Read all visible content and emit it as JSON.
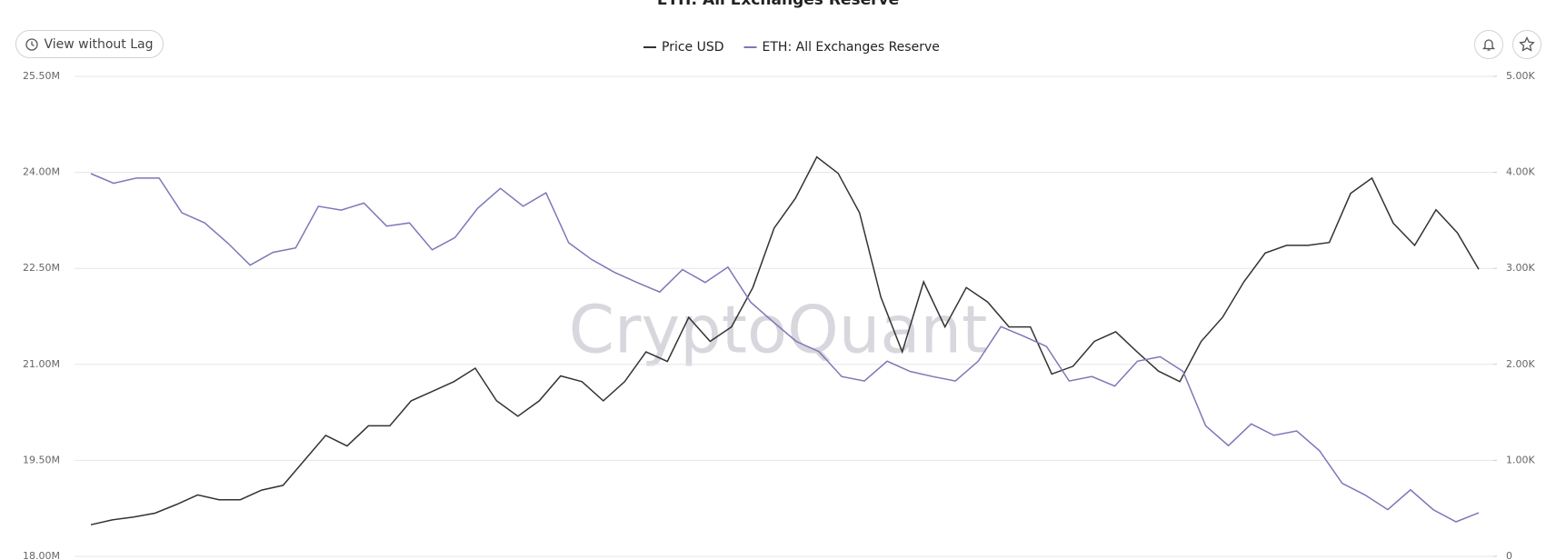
{
  "toolbar": {
    "button_label": "View without Lag"
  },
  "chart_data": {
    "type": "line",
    "title": "ETH: All Exchanges Reserve",
    "watermark": "CryptoQuant",
    "ylim": [
      18000000,
      25500000
    ],
    "yticks": [
      {
        "value": 18000000,
        "label": "18.00M"
      },
      {
        "value": 19500000,
        "label": "19.50M"
      },
      {
        "value": 21000000,
        "label": "21.00M"
      },
      {
        "value": 22500000,
        "label": "22.50M"
      },
      {
        "value": 24000000,
        "label": "24.00M"
      },
      {
        "value": 25500000,
        "label": "25.50M"
      }
    ],
    "y2lim": [
      0,
      5000
    ],
    "y2ticks": [
      0,
      {
        "value": 1000,
        "label": "1.00K"
      },
      {
        "value": 2000,
        "label": "2.00K"
      },
      {
        "value": 3000,
        "label": "3.00K"
      },
      {
        "value": 4000,
        "label": "4.00K"
      },
      {
        "value": 5000,
        "label": "5.00K"
      }
    ],
    "grid": true,
    "series": [
      {
        "name": "Price USD",
        "color": "#333333",
        "axis": "y2",
        "values": [
          330,
          380,
          410,
          450,
          540,
          640,
          590,
          590,
          690,
          740,
          1000,
          1260,
          1150,
          1360,
          1360,
          1620,
          1720,
          1820,
          1960,
          1620,
          1460,
          1620,
          1880,
          1820,
          1620,
          1820,
          2130,
          2030,
          2490,
          2240,
          2390,
          2800,
          3420,
          3730,
          4160,
          3990,
          3580,
          2700,
          2130,
          2860,
          2390,
          2800,
          2650,
          2390,
          2390,
          1900,
          1980,
          2240,
          2340,
          2130,
          1930,
          1820,
          2240,
          2490,
          2860,
          3160,
          3240,
          3240,
          3270,
          3780,
          3940,
          3470,
          3240,
          3610,
          3370,
          2990
        ]
      },
      {
        "name": "ETH: All Exchanges Reserve",
        "color": "#7b78b8",
        "values": [
          23980000,
          23830000,
          23910000,
          23910000,
          23370000,
          23210000,
          22900000,
          22550000,
          22750000,
          22820000,
          23470000,
          23410000,
          23520000,
          23160000,
          23210000,
          22790000,
          22980000,
          23440000,
          23750000,
          23470000,
          23680000,
          22900000,
          22640000,
          22440000,
          22280000,
          22130000,
          22480000,
          22280000,
          22520000,
          21970000,
          21660000,
          21360000,
          21200000,
          20810000,
          20740000,
          21050000,
          20890000,
          20810000,
          20740000,
          21050000,
          21590000,
          21440000,
          21280000,
          20740000,
          20810000,
          20660000,
          21050000,
          21120000,
          20890000,
          20040000,
          19730000,
          20070000,
          19890000,
          19960000,
          19650000,
          19140000,
          18960000,
          18730000,
          19040000,
          18730000,
          18540000,
          18680000
        ]
      }
    ]
  }
}
